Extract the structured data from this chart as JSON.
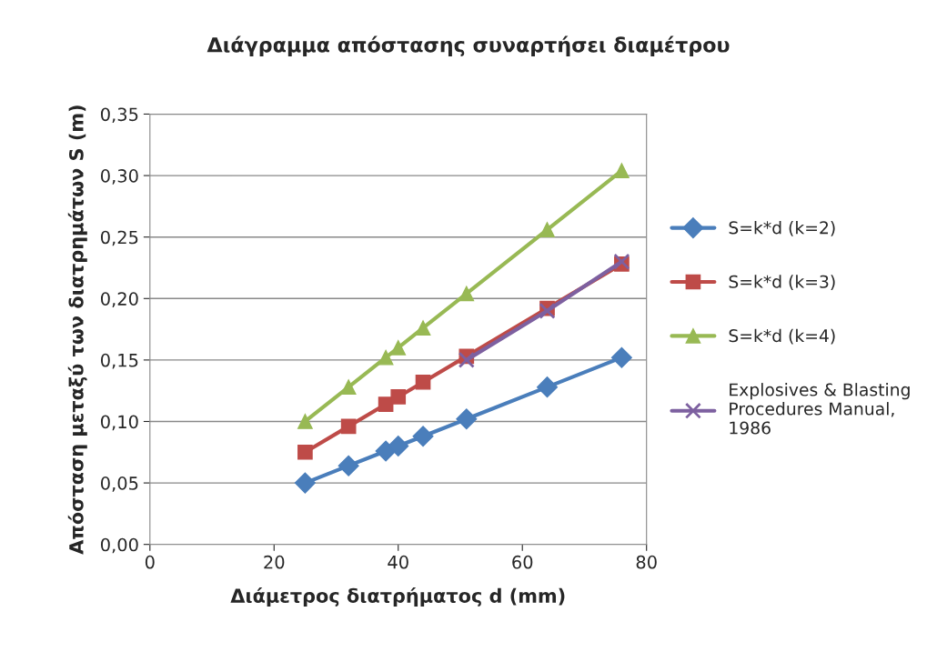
{
  "chart_data": {
    "type": "line",
    "title": "Διάγραμμα απόστασης συναρτήσει διαμέτρου",
    "xlabel": "Διάμετρος διατρήματος d (mm)",
    "ylabel": "Απόσταση μεταξύ των διατρημάτων S (m)",
    "x": [
      25,
      32,
      38,
      40,
      44,
      51,
      64,
      76
    ],
    "series": [
      {
        "name": "S=k*d (k=2)",
        "color": "#4a7ebb",
        "marker": "diamond",
        "values": [
          0.05,
          0.064,
          0.076,
          0.08,
          0.088,
          0.102,
          0.128,
          0.152
        ]
      },
      {
        "name": "S=k*d (k=3)",
        "color": "#be4b48",
        "marker": "square",
        "values": [
          0.075,
          0.096,
          0.114,
          0.12,
          0.132,
          0.153,
          0.192,
          0.228
        ]
      },
      {
        "name": "S=k*d (k=4)",
        "color": "#98b954",
        "marker": "triangle",
        "values": [
          0.1,
          0.128,
          0.152,
          0.16,
          0.176,
          0.204,
          0.256,
          0.304
        ]
      },
      {
        "name": "Explosives & Blasting Procedures Manual, 1986",
        "color": "#7d60a0",
        "marker": "cross",
        "x": [
          51,
          64,
          76
        ],
        "values": [
          0.15,
          0.19,
          0.23
        ]
      }
    ],
    "xlim": [
      0,
      80
    ],
    "xticks": [
      0,
      20,
      40,
      60,
      80
    ],
    "ylim": [
      0,
      0.35
    ],
    "yticks": [
      {
        "value": 0,
        "label": "0,00"
      },
      {
        "value": 0.05,
        "label": "0,05"
      },
      {
        "value": 0.1,
        "label": "0,10"
      },
      {
        "value": 0.15,
        "label": "0,15"
      },
      {
        "value": 0.2,
        "label": "0,20"
      },
      {
        "value": 0.25,
        "label": "0,25"
      },
      {
        "value": 0.3,
        "label": "0,30"
      },
      {
        "value": 0.35,
        "label": "0,35"
      }
    ],
    "grid": "y",
    "legend": "right",
    "line_style": "solid"
  }
}
